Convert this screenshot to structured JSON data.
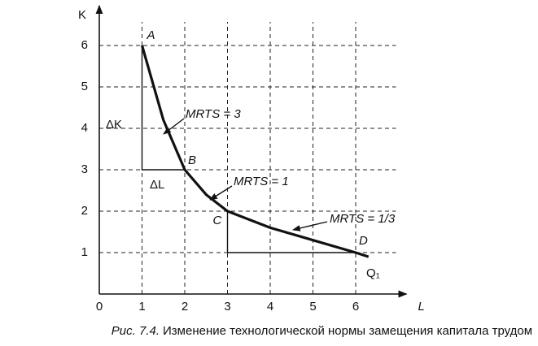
{
  "chart_data": {
    "type": "line",
    "xlabel": "L",
    "ylabel": "K",
    "xlim": [
      0,
      7
    ],
    "ylim": [
      0,
      7
    ],
    "xticks": [
      0,
      1,
      2,
      3,
      4,
      5,
      6
    ],
    "yticks": [
      1,
      2,
      3,
      4,
      5,
      6
    ],
    "grid": true,
    "x": [
      1,
      1.5,
      2,
      2.5,
      3,
      4,
      5,
      6,
      6.3
    ],
    "series": [
      {
        "name": "Q₁",
        "color": "#111111",
        "values": [
          6,
          4.2,
          3,
          2.4,
          2,
          1.6,
          1.3,
          1,
          0.9
        ]
      }
    ],
    "points": [
      {
        "label": "A",
        "x": 1,
        "y": 6
      },
      {
        "label": "B",
        "x": 2,
        "y": 3
      },
      {
        "label": "C",
        "x": 3,
        "y": 2
      },
      {
        "label": "D",
        "x": 6,
        "y": 1
      }
    ],
    "annotations": [
      "MRTS = 3",
      "MRTS = 1",
      "MRTS = 1/3",
      "ΔK",
      "ΔL"
    ],
    "caption_label": "Рис. 7.4.",
    "caption": "Изменение технологической нормы замещения капитала трудом"
  }
}
